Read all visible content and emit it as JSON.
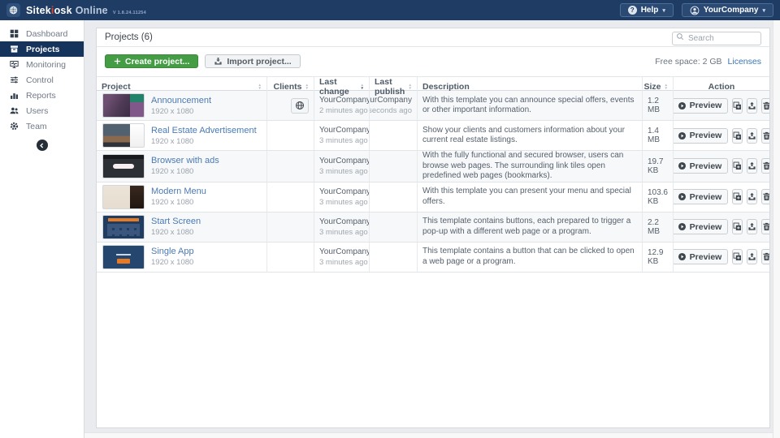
{
  "colors": {
    "topbar_bg": "#1e3c64",
    "brand_accent": "#e8432e",
    "active_nav_bg": "#16335c",
    "create_button_green": "#449d44",
    "link_blue": "#4a7ab5"
  },
  "topbar": {
    "brand": {
      "part1": "Sitek",
      "accent": "i",
      "part2": "osk",
      "product": "Online",
      "version": "V 1.8.24.11254"
    },
    "help_label": "Help",
    "account_label": "YourCompany"
  },
  "sidebar": {
    "items": [
      {
        "label": "Dashboard",
        "icon": "dashboard-icon",
        "active": false
      },
      {
        "label": "Projects",
        "icon": "projects-icon",
        "active": true
      },
      {
        "label": "Monitoring",
        "icon": "monitoring-icon",
        "active": false
      },
      {
        "label": "Control",
        "icon": "control-icon",
        "active": false
      },
      {
        "label": "Reports",
        "icon": "reports-icon",
        "active": false
      },
      {
        "label": "Users",
        "icon": "users-icon",
        "active": false
      },
      {
        "label": "Team",
        "icon": "team-icon",
        "active": false
      }
    ]
  },
  "page": {
    "title": "Projects (6)",
    "search_placeholder": "Search",
    "create_label": "Create project...",
    "import_label": "Import project...",
    "free_space_label": "Free space: 2 GB",
    "licenses_label": "Licenses"
  },
  "table": {
    "preview_label": "Preview",
    "columns": [
      {
        "label": "Project",
        "sortable": true,
        "sort": null
      },
      {
        "label": "Clients",
        "sortable": true,
        "sort": null
      },
      {
        "label": "Last change",
        "sortable": true,
        "sort": "desc"
      },
      {
        "label": "Last publish",
        "sortable": true,
        "sort": null
      },
      {
        "label": "Description",
        "sortable": false,
        "sort": null
      },
      {
        "label": "Size",
        "sortable": true,
        "sort": null
      },
      {
        "label": "Action",
        "sortable": false,
        "sort": null
      }
    ],
    "rows": [
      {
        "name": "Announcement",
        "resolution": "1920 x 1080",
        "thumb": "announcement",
        "client_badge": true,
        "last_change_by": "YourCompany",
        "last_change_time": "2 minutes ago",
        "last_publish_by": "YourCompany",
        "last_publish_time": "3 seconds ago",
        "description": "With this template you can announce special offers, events or other important information.",
        "size": "1.2 MB"
      },
      {
        "name": "Real Estate Advertisement",
        "resolution": "1920 x 1080",
        "thumb": "realestate",
        "client_badge": false,
        "last_change_by": "YourCompany",
        "last_change_time": "3 minutes ago",
        "last_publish_by": "",
        "last_publish_time": "",
        "description": "Show your clients and customers information about your current real estate listings.",
        "size": "1.4 MB"
      },
      {
        "name": "Browser with ads",
        "resolution": "1920 x 1080",
        "thumb": "browser",
        "client_badge": false,
        "last_change_by": "YourCompany",
        "last_change_time": "3 minutes ago",
        "last_publish_by": "",
        "last_publish_time": "",
        "description": "With the fully functional and secured browser, users can browse web pages. The surrounding link tiles open predefined web pages (bookmarks).",
        "size": "19.7 KB"
      },
      {
        "name": "Modern Menu",
        "resolution": "1920 x 1080",
        "thumb": "modernmenu",
        "client_badge": false,
        "last_change_by": "YourCompany",
        "last_change_time": "3 minutes ago",
        "last_publish_by": "",
        "last_publish_time": "",
        "description": "With this template you can present your menu and special offers.",
        "size": "103.6 KB"
      },
      {
        "name": "Start Screen",
        "resolution": "1920 x 1080",
        "thumb": "startscreen",
        "client_badge": false,
        "last_change_by": "YourCompany",
        "last_change_time": "3 minutes ago",
        "last_publish_by": "",
        "last_publish_time": "",
        "description": "This template contains buttons, each prepared to trigger a pop-up with a different web page or a program.",
        "size": "2.2 MB"
      },
      {
        "name": "Single App",
        "resolution": "1920 x 1080",
        "thumb": "singleapp",
        "client_badge": false,
        "last_change_by": "YourCompany",
        "last_change_time": "3 minutes ago",
        "last_publish_by": "",
        "last_publish_time": "",
        "description": "This template contains a button that can be clicked to open a web page or a program.",
        "size": "12.9 KB"
      }
    ]
  }
}
